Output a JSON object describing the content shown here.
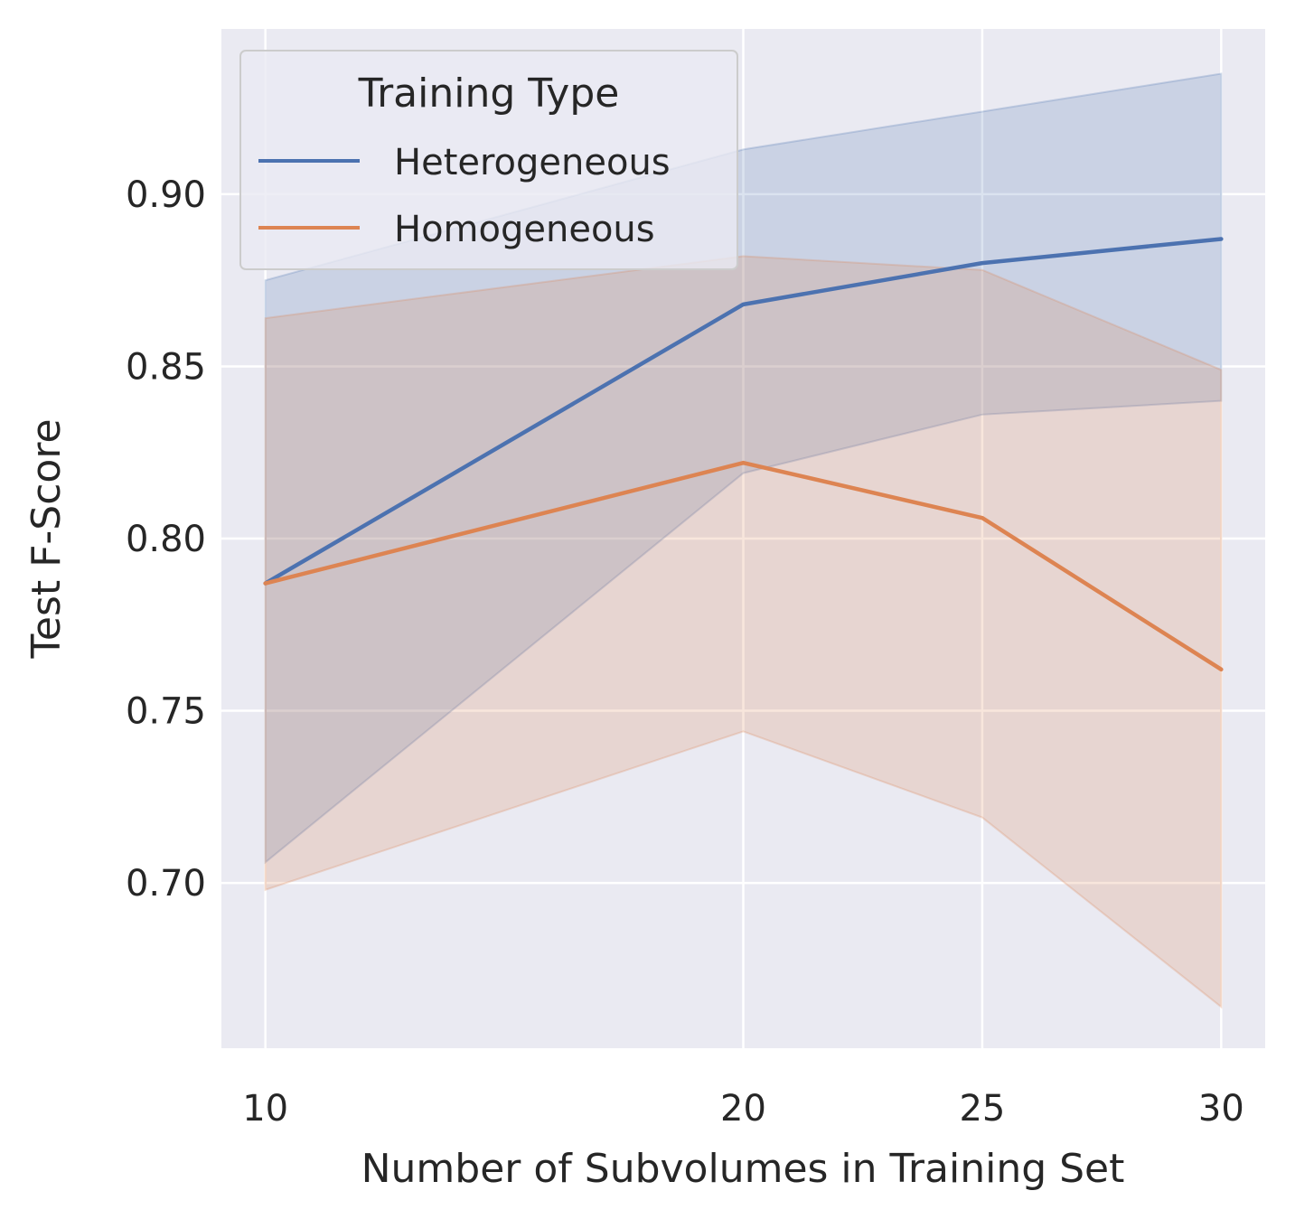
{
  "chart_data": {
    "type": "line",
    "xlabel": "Number of Subvolumes in Training Set",
    "ylabel": "Test F-Score",
    "x": [
      10,
      20,
      25,
      30
    ],
    "xticks": [
      10,
      20,
      25,
      30
    ],
    "xtick_labels": [
      "10",
      "20",
      "25",
      "30"
    ],
    "yticks": [
      0.7,
      0.75,
      0.8,
      0.85,
      0.9
    ],
    "ytick_labels": [
      "0.70",
      "0.75",
      "0.80",
      "0.85",
      "0.90"
    ],
    "xlim": [
      9.08,
      30.92
    ],
    "ylim": [
      0.652,
      0.948
    ],
    "grid": true,
    "legend": {
      "title": "Training Type",
      "placement": "top-left"
    },
    "series": [
      {
        "name": "Heterogeneous",
        "color": "#4c72b0",
        "values": [
          0.787,
          0.868,
          0.88,
          0.887
        ],
        "ci_lower": [
          0.706,
          0.819,
          0.836,
          0.84
        ],
        "ci_upper": [
          0.875,
          0.913,
          0.924,
          0.935
        ]
      },
      {
        "name": "Homogeneous",
        "color": "#dd8452",
        "values": [
          0.787,
          0.822,
          0.806,
          0.762
        ],
        "ci_lower": [
          0.698,
          0.744,
          0.719,
          0.664
        ],
        "ci_upper": [
          0.864,
          0.882,
          0.878,
          0.849
        ]
      }
    ]
  }
}
